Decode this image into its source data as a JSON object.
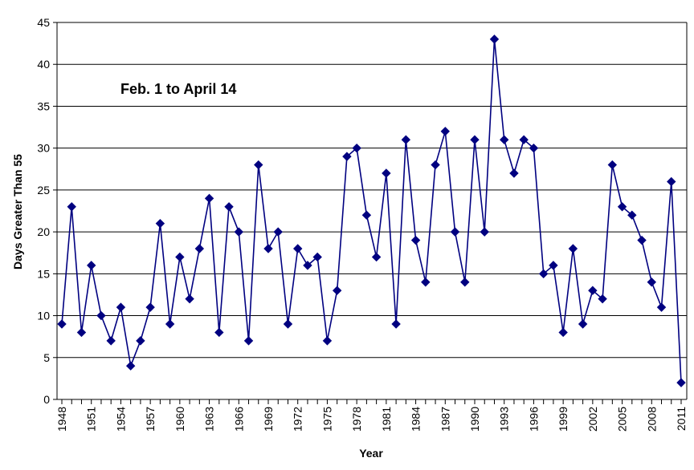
{
  "chart_data": {
    "type": "line",
    "annotation": "Feb. 1 to April 14",
    "xlabel": "Year",
    "ylabel": "Days Greater Than 55",
    "ylim": [
      0,
      45
    ],
    "yticks": [
      0,
      5,
      10,
      15,
      20,
      25,
      30,
      35,
      40,
      45
    ],
    "xlim": [
      1948,
      2011
    ],
    "xtick_labels": [
      "1948",
      "1951",
      "1954",
      "1957",
      "1960",
      "1963",
      "1966",
      "1969",
      "1972",
      "1975",
      "1978",
      "1981",
      "1984",
      "1987",
      "1990",
      "1993",
      "1996",
      "1999",
      "2002",
      "2005",
      "2008",
      "2011"
    ],
    "grid": "horizontal",
    "series_color": "#000080",
    "marker": "diamond",
    "x": [
      1948,
      1949,
      1950,
      1951,
      1952,
      1953,
      1954,
      1955,
      1956,
      1957,
      1958,
      1959,
      1960,
      1961,
      1962,
      1963,
      1964,
      1965,
      1966,
      1967,
      1968,
      1969,
      1970,
      1971,
      1972,
      1973,
      1974,
      1975,
      1976,
      1977,
      1978,
      1979,
      1980,
      1981,
      1982,
      1983,
      1984,
      1985,
      1986,
      1987,
      1988,
      1989,
      1990,
      1991,
      1992,
      1993,
      1994,
      1995,
      1996,
      1997,
      1998,
      1999,
      2000,
      2001,
      2002,
      2003,
      2004,
      2005,
      2006,
      2007,
      2008,
      2009,
      2010,
      2011
    ],
    "values": [
      9,
      23,
      8,
      16,
      10,
      7,
      11,
      4,
      7,
      11,
      21,
      9,
      17,
      12,
      18,
      24,
      8,
      23,
      20,
      7,
      28,
      18,
      20,
      9,
      18,
      16,
      17,
      7,
      13,
      29,
      30,
      22,
      17,
      27,
      9,
      31,
      19,
      14,
      28,
      32,
      20,
      14,
      31,
      20,
      43,
      31,
      27,
      31,
      30,
      15,
      16,
      8,
      18,
      9,
      13,
      12,
      28,
      23,
      22,
      19,
      14,
      11,
      26,
      2
    ]
  }
}
